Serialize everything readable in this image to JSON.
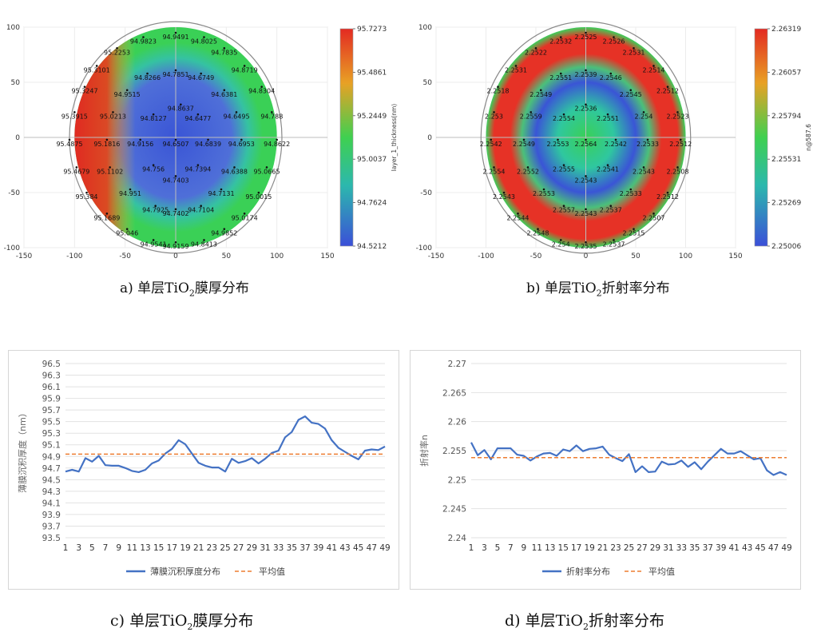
{
  "captions": {
    "a": {
      "pre": "a) 单层TiO",
      "sub": "2",
      "post": "膜厚分布"
    },
    "b": {
      "pre": "b) 单层TiO",
      "sub": "2",
      "post": "折射率分布"
    },
    "c": {
      "pre": "c) 单层TiO",
      "sub": "2",
      "post": "膜厚分布"
    },
    "d": {
      "pre": "d) 单层TiO",
      "sub": "2",
      "post": "折射率分布"
    }
  },
  "chart_data": [
    {
      "type": "heatmap",
      "id": "a",
      "xlim": [
        -150,
        150
      ],
      "ylim": [
        -100,
        100
      ],
      "xticks": [
        -150,
        -100,
        -50,
        0,
        50,
        100,
        150
      ],
      "yticks": [
        100,
        50,
        0,
        -50,
        -100
      ],
      "colorbar_label": "layer_1_thickness(nm)",
      "colorbar_ticks": [
        "95.7273",
        "95.4861",
        "95.2449",
        "95.0037",
        "94.7624",
        "94.5212"
      ],
      "colors": {
        "low": "#3a55d6",
        "mid": "#3ad056",
        "high": "#e63226"
      },
      "points": [
        {
          "x": 0,
          "y": 92,
          "label": "94.9491"
        },
        {
          "x": -32,
          "y": 88,
          "label": "94.9823"
        },
        {
          "x": 28,
          "y": 88,
          "label": "94.8025"
        },
        {
          "x": -58,
          "y": 78,
          "label": "95.2253"
        },
        {
          "x": 48,
          "y": 78,
          "label": "94.7835"
        },
        {
          "x": -78,
          "y": 62,
          "label": "95.3101"
        },
        {
          "x": 68,
          "y": 62,
          "label": "94.8719"
        },
        {
          "x": 0,
          "y": 58,
          "label": "94.7851"
        },
        {
          "x": -28,
          "y": 55,
          "label": "94.8266"
        },
        {
          "x": 25,
          "y": 55,
          "label": "94.6749"
        },
        {
          "x": -90,
          "y": 43,
          "label": "95.3247"
        },
        {
          "x": -48,
          "y": 40,
          "label": "94.9515"
        },
        {
          "x": 48,
          "y": 40,
          "label": "94.6381"
        },
        {
          "x": 85,
          "y": 43,
          "label": "94.8304"
        },
        {
          "x": 5,
          "y": 27,
          "label": "94.8637"
        },
        {
          "x": -100,
          "y": 20,
          "label": "95.3915"
        },
        {
          "x": -62,
          "y": 20,
          "label": "95.0213"
        },
        {
          "x": -22,
          "y": 18,
          "label": "94.8127"
        },
        {
          "x": 22,
          "y": 18,
          "label": "94.6477"
        },
        {
          "x": 60,
          "y": 20,
          "label": "94.6495"
        },
        {
          "x": 95,
          "y": 20,
          "label": "94.788"
        },
        {
          "x": -105,
          "y": -5,
          "label": "95.4875"
        },
        {
          "x": -68,
          "y": -5,
          "label": "95.1816"
        },
        {
          "x": -35,
          "y": -5,
          "label": "94.9156"
        },
        {
          "x": 0,
          "y": -5,
          "label": "94.6507"
        },
        {
          "x": 32,
          "y": -5,
          "label": "94.6839"
        },
        {
          "x": 65,
          "y": -5,
          "label": "94.6953"
        },
        {
          "x": 100,
          "y": -5,
          "label": "94.8622"
        },
        {
          "x": -98,
          "y": -30,
          "label": "95.4679"
        },
        {
          "x": -65,
          "y": -30,
          "label": "95.1102"
        },
        {
          "x": -22,
          "y": -28,
          "label": "94.756"
        },
        {
          "x": 22,
          "y": -28,
          "label": "94.7394"
        },
        {
          "x": 58,
          "y": -30,
          "label": "94.6388"
        },
        {
          "x": 90,
          "y": -30,
          "label": "95.0665"
        },
        {
          "x": 0,
          "y": -38,
          "label": "94.7403"
        },
        {
          "x": -88,
          "y": -53,
          "label": "95.384"
        },
        {
          "x": -45,
          "y": -50,
          "label": "94.951"
        },
        {
          "x": 45,
          "y": -50,
          "label": "94.7131"
        },
        {
          "x": 82,
          "y": -53,
          "label": "95.0015"
        },
        {
          "x": -20,
          "y": -65,
          "label": "94.7925"
        },
        {
          "x": 25,
          "y": -65,
          "label": "94.7104"
        },
        {
          "x": 0,
          "y": -68,
          "label": "94.7402"
        },
        {
          "x": -68,
          "y": -72,
          "label": "95.1689"
        },
        {
          "x": 68,
          "y": -72,
          "label": "95.0174"
        },
        {
          "x": -48,
          "y": -86,
          "label": "95.046"
        },
        {
          "x": 48,
          "y": -86,
          "label": "94.9852"
        },
        {
          "x": -22,
          "y": -96,
          "label": "94.9541"
        },
        {
          "x": 0,
          "y": -98,
          "label": "94.9159"
        },
        {
          "x": 28,
          "y": -96,
          "label": "94.8413"
        }
      ]
    },
    {
      "type": "heatmap",
      "id": "b",
      "xlim": [
        -150,
        150
      ],
      "ylim": [
        -100,
        100
      ],
      "xticks": [
        -150,
        -100,
        -50,
        0,
        50,
        100,
        150
      ],
      "yticks": [
        100,
        50,
        0,
        -50,
        -100
      ],
      "colorbar_label": "n@587.6",
      "colorbar_ticks": [
        "2.26319",
        "2.26057",
        "2.25794",
        "2.25531",
        "2.25269",
        "2.25006"
      ],
      "colors": {
        "low": "#3a55d6",
        "mid": "#3ad056",
        "high": "#e63226"
      },
      "points": [
        {
          "x": 0,
          "y": 92,
          "label": "2.2525"
        },
        {
          "x": -25,
          "y": 88,
          "label": "2.2532"
        },
        {
          "x": 28,
          "y": 88,
          "label": "2.2526"
        },
        {
          "x": -50,
          "y": 78,
          "label": "2.2522"
        },
        {
          "x": 48,
          "y": 78,
          "label": "2.2531"
        },
        {
          "x": -70,
          "y": 62,
          "label": "2.2531"
        },
        {
          "x": 68,
          "y": 62,
          "label": "2.2514"
        },
        {
          "x": 0,
          "y": 58,
          "label": "2.2539"
        },
        {
          "x": -25,
          "y": 55,
          "label": "2.2551"
        },
        {
          "x": 25,
          "y": 55,
          "label": "2.2546"
        },
        {
          "x": -88,
          "y": 43,
          "label": "2.2518"
        },
        {
          "x": -45,
          "y": 40,
          "label": "2.2549"
        },
        {
          "x": 45,
          "y": 40,
          "label": "2.2545"
        },
        {
          "x": 82,
          "y": 43,
          "label": "2.2512"
        },
        {
          "x": 0,
          "y": 27,
          "label": "2.2536"
        },
        {
          "x": -92,
          "y": 20,
          "label": "2.253"
        },
        {
          "x": -55,
          "y": 20,
          "label": "2.2559"
        },
        {
          "x": -22,
          "y": 18,
          "label": "2.2554"
        },
        {
          "x": 22,
          "y": 18,
          "label": "2.2551"
        },
        {
          "x": 58,
          "y": 20,
          "label": "2.254"
        },
        {
          "x": 92,
          "y": 20,
          "label": "2.2523"
        },
        {
          "x": -95,
          "y": -5,
          "label": "2.2542"
        },
        {
          "x": -62,
          "y": -5,
          "label": "2.2549"
        },
        {
          "x": -28,
          "y": -5,
          "label": "2.2553"
        },
        {
          "x": 0,
          "y": -5,
          "label": "2.2564"
        },
        {
          "x": 30,
          "y": -5,
          "label": "2.2542"
        },
        {
          "x": 62,
          "y": -5,
          "label": "2.2533"
        },
        {
          "x": 95,
          "y": -5,
          "label": "2.2512"
        },
        {
          "x": -92,
          "y": -30,
          "label": "2.2554"
        },
        {
          "x": -58,
          "y": -30,
          "label": "2.2552"
        },
        {
          "x": -22,
          "y": -28,
          "label": "2.2555"
        },
        {
          "x": 22,
          "y": -28,
          "label": "2.2541"
        },
        {
          "x": 58,
          "y": -30,
          "label": "2.2543"
        },
        {
          "x": 92,
          "y": -30,
          "label": "2.2508"
        },
        {
          "x": 0,
          "y": -38,
          "label": "2.2543"
        },
        {
          "x": -82,
          "y": -53,
          "label": "2.2543"
        },
        {
          "x": -42,
          "y": -50,
          "label": "2.2553"
        },
        {
          "x": 45,
          "y": -50,
          "label": "2.2533"
        },
        {
          "x": 82,
          "y": -53,
          "label": "2.2512"
        },
        {
          "x": -22,
          "y": -65,
          "label": "2.2557"
        },
        {
          "x": 25,
          "y": -65,
          "label": "2.2537"
        },
        {
          "x": 0,
          "y": -68,
          "label": "2.2543"
        },
        {
          "x": -68,
          "y": -72,
          "label": "2.2544"
        },
        {
          "x": 68,
          "y": -72,
          "label": "2.2507"
        },
        {
          "x": -48,
          "y": -86,
          "label": "2.2548"
        },
        {
          "x": 48,
          "y": -86,
          "label": "2.2515"
        },
        {
          "x": -25,
          "y": -96,
          "label": "2.254"
        },
        {
          "x": 0,
          "y": -98,
          "label": "2.2535"
        },
        {
          "x": 28,
          "y": -96,
          "label": "2.2537"
        }
      ]
    },
    {
      "type": "line",
      "id": "c",
      "ylabel": "薄膜沉积厚度（nm）",
      "ylim": [
        93.5,
        96.5
      ],
      "yticks": [
        "96.5",
        "96.3",
        "96.1",
        "95.9",
        "95.7",
        "95.5",
        "95.3",
        "95.1",
        "94.9",
        "94.7",
        "94.5",
        "94.3",
        "94.1",
        "93.9",
        "93.7",
        "93.5"
      ],
      "xticks": [
        "1",
        "3",
        "5",
        "7",
        "9",
        "11",
        "13",
        "15",
        "17",
        "19",
        "21",
        "23",
        "25",
        "27",
        "29",
        "31",
        "33",
        "35",
        "37",
        "39",
        "41",
        "43",
        "45",
        "47",
        "49"
      ],
      "x": [
        1,
        2,
        3,
        4,
        5,
        6,
        7,
        8,
        9,
        10,
        11,
        12,
        13,
        14,
        15,
        16,
        17,
        18,
        19,
        20,
        21,
        22,
        23,
        24,
        25,
        26,
        27,
        28,
        29,
        30,
        31,
        32,
        33,
        34,
        35,
        36,
        37,
        38,
        39,
        40,
        41,
        42,
        43,
        44,
        45,
        46,
        47,
        48,
        49
      ],
      "series": [
        {
          "name": "薄膜沉积厚度分布",
          "color": "#4472c4",
          "style": "solid",
          "values": [
            94.64,
            94.67,
            94.64,
            94.87,
            94.81,
            94.91,
            94.75,
            94.74,
            94.74,
            94.7,
            94.65,
            94.63,
            94.67,
            94.78,
            94.83,
            94.95,
            95.03,
            95.18,
            95.11,
            94.95,
            94.79,
            94.74,
            94.71,
            94.71,
            94.64,
            94.86,
            94.79,
            94.82,
            94.87,
            94.78,
            94.86,
            94.96,
            95.0,
            95.23,
            95.32,
            95.53,
            95.59,
            95.48,
            95.46,
            95.38,
            95.18,
            95.05,
            94.98,
            94.91,
            94.85,
            95.0,
            95.02,
            95.01,
            95.07
          ]
        },
        {
          "name": "平均值",
          "color": "#ed7d31",
          "style": "dashed",
          "values": [
            94.94,
            94.94,
            94.94,
            94.94,
            94.94,
            94.94,
            94.94,
            94.94,
            94.94,
            94.94,
            94.94,
            94.94,
            94.94,
            94.94,
            94.94,
            94.94,
            94.94,
            94.94,
            94.94,
            94.94,
            94.94,
            94.94,
            94.94,
            94.94,
            94.94,
            94.94,
            94.94,
            94.94,
            94.94,
            94.94,
            94.94,
            94.94,
            94.94,
            94.94,
            94.94,
            94.94,
            94.94,
            94.94,
            94.94,
            94.94,
            94.94,
            94.94,
            94.94,
            94.94,
            94.94,
            94.94,
            94.94,
            94.94,
            94.94
          ]
        }
      ],
      "legend": "bottom"
    },
    {
      "type": "line",
      "id": "d",
      "ylabel": "折射率n",
      "ylim": [
        2.24,
        2.27
      ],
      "yticks": [
        "2.27",
        "2.265",
        "2.26",
        "2.255",
        "2.25",
        "2.245",
        "2.24"
      ],
      "xticks": [
        "1",
        "3",
        "5",
        "7",
        "9",
        "11",
        "13",
        "15",
        "17",
        "19",
        "21",
        "23",
        "25",
        "27",
        "29",
        "31",
        "33",
        "35",
        "37",
        "39",
        "41",
        "43",
        "45",
        "47",
        "49"
      ],
      "x": [
        1,
        2,
        3,
        4,
        5,
        6,
        7,
        8,
        9,
        10,
        11,
        12,
        13,
        14,
        15,
        16,
        17,
        18,
        19,
        20,
        21,
        22,
        23,
        24,
        25,
        26,
        27,
        28,
        29,
        30,
        31,
        32,
        33,
        34,
        35,
        36,
        37,
        38,
        39,
        40,
        41,
        42,
        43,
        44,
        45,
        46,
        47,
        48,
        49
      ],
      "series": [
        {
          "name": "折射率分布",
          "color": "#4472c4",
          "style": "solid",
          "values": [
            2.2564,
            2.2542,
            2.2551,
            2.2535,
            2.2554,
            2.2554,
            2.2554,
            2.2543,
            2.2541,
            2.2533,
            2.254,
            2.2545,
            2.2546,
            2.2541,
            2.2552,
            2.2549,
            2.2559,
            2.2549,
            2.2553,
            2.2554,
            2.2557,
            2.2543,
            2.2537,
            2.2532,
            2.2544,
            2.2513,
            2.2523,
            2.2513,
            2.2514,
            2.2531,
            2.2526,
            2.2527,
            2.2533,
            2.2522,
            2.253,
            2.2518,
            2.2531,
            2.2542,
            2.2553,
            2.2545,
            2.2545,
            2.2549,
            2.2542,
            2.2535,
            2.2537,
            2.2516,
            2.2508,
            2.2513,
            2.2508
          ]
        },
        {
          "name": "平均值",
          "color": "#ed7d31",
          "style": "dashed",
          "values": [
            2.2538,
            2.2538,
            2.2538,
            2.2538,
            2.2538,
            2.2538,
            2.2538,
            2.2538,
            2.2538,
            2.2538,
            2.2538,
            2.2538,
            2.2538,
            2.2538,
            2.2538,
            2.2538,
            2.2538,
            2.2538,
            2.2538,
            2.2538,
            2.2538,
            2.2538,
            2.2538,
            2.2538,
            2.2538,
            2.2538,
            2.2538,
            2.2538,
            2.2538,
            2.2538,
            2.2538,
            2.2538,
            2.2538,
            2.2538,
            2.2538,
            2.2538,
            2.2538,
            2.2538,
            2.2538,
            2.2538,
            2.2538,
            2.2538,
            2.2538,
            2.2538,
            2.2538,
            2.2538,
            2.2538,
            2.2538,
            2.2538
          ]
        }
      ],
      "legend": "bottom"
    }
  ]
}
